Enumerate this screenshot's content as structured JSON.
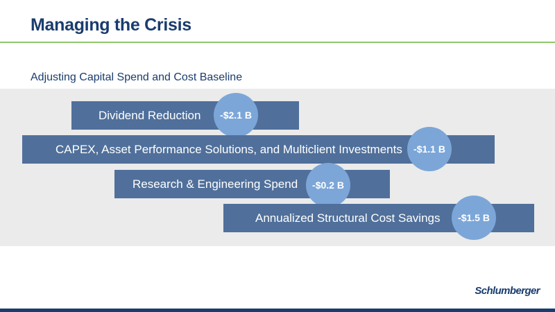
{
  "slide": {
    "title": "Managing the Crisis",
    "subtitle": "Adjusting Capital Spend and Cost Baseline"
  },
  "items": [
    {
      "label": "Dividend Reduction",
      "value": "-$2.1 B"
    },
    {
      "label": "CAPEX, Asset Performance Solutions, and Multiclient Investments",
      "value": "-$1.1 B"
    },
    {
      "label": "Research & Engineering Spend",
      "value": "-$0.2 B"
    },
    {
      "label": "Annualized Structural Cost Savings",
      "value": "-$1.5 B"
    }
  ],
  "footer": {
    "logo_text": "Schlumberger"
  },
  "colors": {
    "title": "#1a3c6e",
    "accent_rule": "#8ec86a",
    "panel": "#ebebeb",
    "bar": "#50709b",
    "bubble": "#7ca6d8",
    "footer_bar": "#1a3c6e"
  }
}
